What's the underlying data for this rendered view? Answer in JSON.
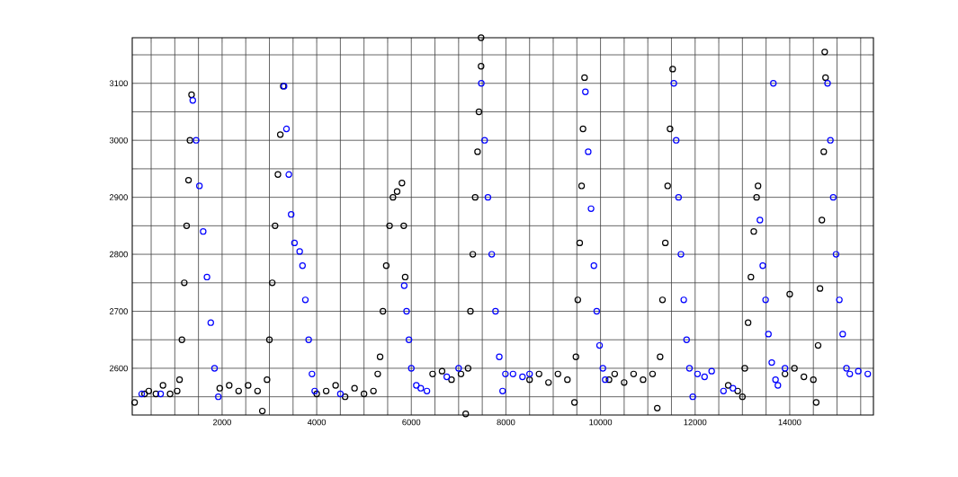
{
  "chart_data": {
    "type": "scatter",
    "marker": "circle",
    "grid": true,
    "xlim": [
      100,
      15770
    ],
    "ylim": [
      2518,
      3180
    ],
    "xticks": [
      {
        "value": 500,
        "label": null
      },
      {
        "value": 1000,
        "label": null
      },
      {
        "value": 1500,
        "label": null
      },
      2000,
      {
        "value": 2500,
        "label": null
      },
      {
        "value": 3000,
        "label": null
      },
      {
        "value": 3500,
        "label": null
      },
      4000,
      {
        "value": 4500,
        "label": null
      },
      {
        "value": 5000,
        "label": null
      },
      {
        "value": 5500,
        "label": null
      },
      6000,
      {
        "value": 6500,
        "label": null
      },
      {
        "value": 7000,
        "label": null
      },
      {
        "value": 7500,
        "label": null
      },
      8000,
      {
        "value": 8500,
        "label": null
      },
      {
        "value": 9000,
        "label": null
      },
      {
        "value": 9500,
        "label": null
      },
      10000,
      {
        "value": 10500,
        "label": null
      },
      {
        "value": 11000,
        "label": null
      },
      {
        "value": 11500,
        "label": null
      },
      12000,
      {
        "value": 12500,
        "label": null
      },
      {
        "value": 13000,
        "label": null
      },
      {
        "value": 13500,
        "label": null
      },
      14000,
      {
        "value": 14500,
        "label": null
      },
      {
        "value": 15000,
        "label": null
      },
      {
        "value": 15500,
        "label": null
      }
    ],
    "yticks": [
      {
        "value": 2550,
        "label": null
      },
      2600,
      {
        "value": 2650,
        "label": null
      },
      2700,
      {
        "value": 2750,
        "label": null
      },
      2800,
      {
        "value": 2850,
        "label": null
      },
      2900,
      {
        "value": 2950,
        "label": null
      },
      3000,
      {
        "value": 3050,
        "label": null
      },
      3100,
      {
        "value": 3150,
        "label": null
      }
    ],
    "series": [
      {
        "color": "#000000",
        "x": [
          150,
          360,
          450,
          600,
          750,
          900,
          1050,
          1100,
          1150,
          1200,
          1250,
          1290,
          1320,
          1354,
          1950,
          2150,
          2350,
          2550,
          2750,
          2850,
          2950,
          3000,
          3060,
          3120,
          3180,
          3230,
          3293,
          4000,
          4200,
          4400,
          4600,
          4800,
          5000,
          5200,
          5290,
          5340,
          5400,
          5470,
          5540,
          5612,
          5700,
          5802,
          5840,
          5870,
          6450,
          6650,
          6850,
          7050,
          7150,
          7200,
          7250,
          7300,
          7350,
          7400,
          7430,
          7475,
          7475,
          8500,
          8700,
          8900,
          9100,
          9300,
          9450,
          9480,
          9520,
          9560,
          9600,
          9630,
          9662,
          10180,
          10300,
          10500,
          10700,
          10900,
          11100,
          11200,
          11260,
          11310,
          11370,
          11420,
          11470,
          11525,
          12700,
          12900,
          13000,
          13050,
          13120,
          13180,
          13240,
          13300,
          13330,
          14000,
          13900,
          14100,
          14300,
          14500,
          14560,
          14600,
          14640,
          14680,
          14720,
          14757,
          14740
        ],
        "values": [
          2540,
          2555,
          2560,
          2555,
          2570,
          2555,
          2560,
          2580,
          2650,
          2750,
          2850,
          2930,
          3000,
          3080,
          2565,
          2570,
          2560,
          2570,
          2560,
          2525,
          2580,
          2650,
          2750,
          2850,
          2940,
          3010,
          3095,
          2555,
          2560,
          2570,
          2550,
          2565,
          2555,
          2560,
          2590,
          2620,
          2700,
          2780,
          2850,
          2900,
          2910,
          2925,
          2850,
          2760,
          2590,
          2595,
          2580,
          2590,
          2520,
          2600,
          2700,
          2800,
          2900,
          2980,
          3050,
          3130,
          3180,
          2580,
          2590,
          2575,
          2590,
          2580,
          2540,
          2620,
          2720,
          2820,
          2920,
          3020,
          3110,
          2580,
          2590,
          2575,
          2590,
          2580,
          2590,
          2530,
          2620,
          2720,
          2820,
          2920,
          3020,
          3125,
          2570,
          2560,
          2550,
          2600,
          2680,
          2760,
          2840,
          2900,
          2920,
          2730,
          2590,
          2600,
          2585,
          2580,
          2540,
          2640,
          2740,
          2860,
          2980,
          3110,
          3155
        ]
      },
      {
        "color": "#0000ff",
        "x": [
          300,
          700,
          1380,
          1450,
          1520,
          1600,
          1680,
          1760,
          1840,
          1920,
          3310,
          3360,
          3410,
          3460,
          3530,
          3640,
          3700,
          3760,
          3830,
          3900,
          3958,
          4500,
          5850,
          5900,
          5950,
          6000,
          6106,
          6200,
          6330,
          6750,
          7000,
          7480,
          7550,
          7620,
          7700,
          7780,
          7860,
          7930,
          7989,
          8150,
          8350,
          8500,
          9680,
          9740,
          9800,
          9860,
          9920,
          9980,
          10050,
          10099,
          11550,
          11600,
          11650,
          11700,
          11760,
          11820,
          11880,
          11950,
          12050,
          12200,
          12350,
          12600,
          12800,
          13370,
          13430,
          13490,
          13550,
          13620,
          13700,
          13750,
          13654,
          13900,
          14800,
          14860,
          14920,
          14980,
          15050,
          15120,
          15200,
          15270,
          15450,
          15650
        ],
        "values": [
          2555,
          2555,
          3070,
          3000,
          2920,
          2840,
          2760,
          2680,
          2600,
          2550,
          3095,
          3020,
          2940,
          2870,
          2820,
          2805,
          2780,
          2720,
          2650,
          2590,
          2560,
          2555,
          2745,
          2700,
          2650,
          2600,
          2570,
          2565,
          2560,
          2585,
          2600,
          3100,
          3000,
          2900,
          2800,
          2700,
          2620,
          2560,
          2590,
          2590,
          2585,
          2590,
          3085,
          2980,
          2880,
          2780,
          2700,
          2640,
          2600,
          2580,
          3100,
          3000,
          2900,
          2800,
          2720,
          2650,
          2600,
          2550,
          2590,
          2585,
          2595,
          2560,
          2565,
          2860,
          2780,
          2720,
          2660,
          2610,
          2580,
          2570,
          3100,
          2600,
          3100,
          3000,
          2900,
          2800,
          2720,
          2660,
          2600,
          2590,
          2595,
          2590
        ]
      }
    ]
  }
}
